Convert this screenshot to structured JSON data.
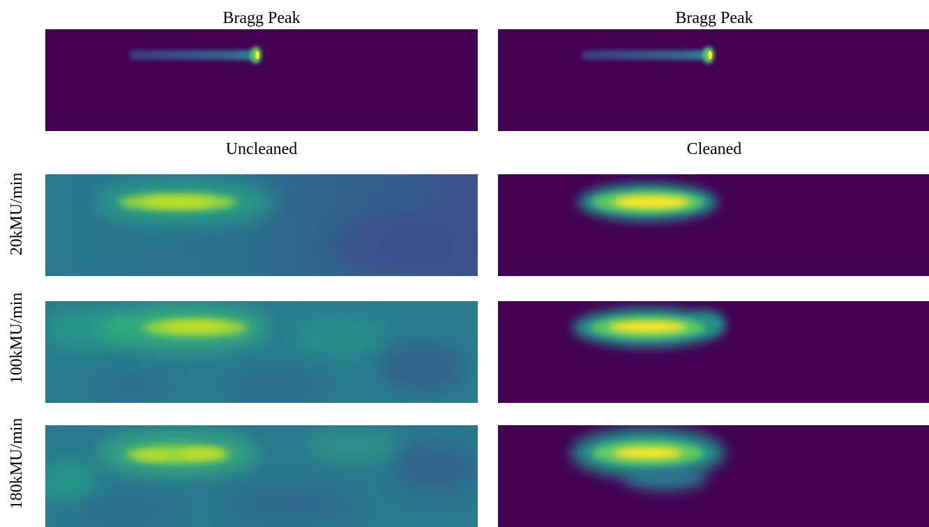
{
  "titles": {
    "top_left": "Bragg Peak",
    "top_right": "Bragg Peak",
    "mid_left": "Uncleaned",
    "mid_right": "Cleaned"
  },
  "rows": {
    "r1": "20kMU/min",
    "r2": "100kMU/min",
    "r3": "180kMU/min"
  },
  "colormap": {
    "low": "#440154",
    "mid": "#21918c",
    "high": "#fde725"
  }
}
